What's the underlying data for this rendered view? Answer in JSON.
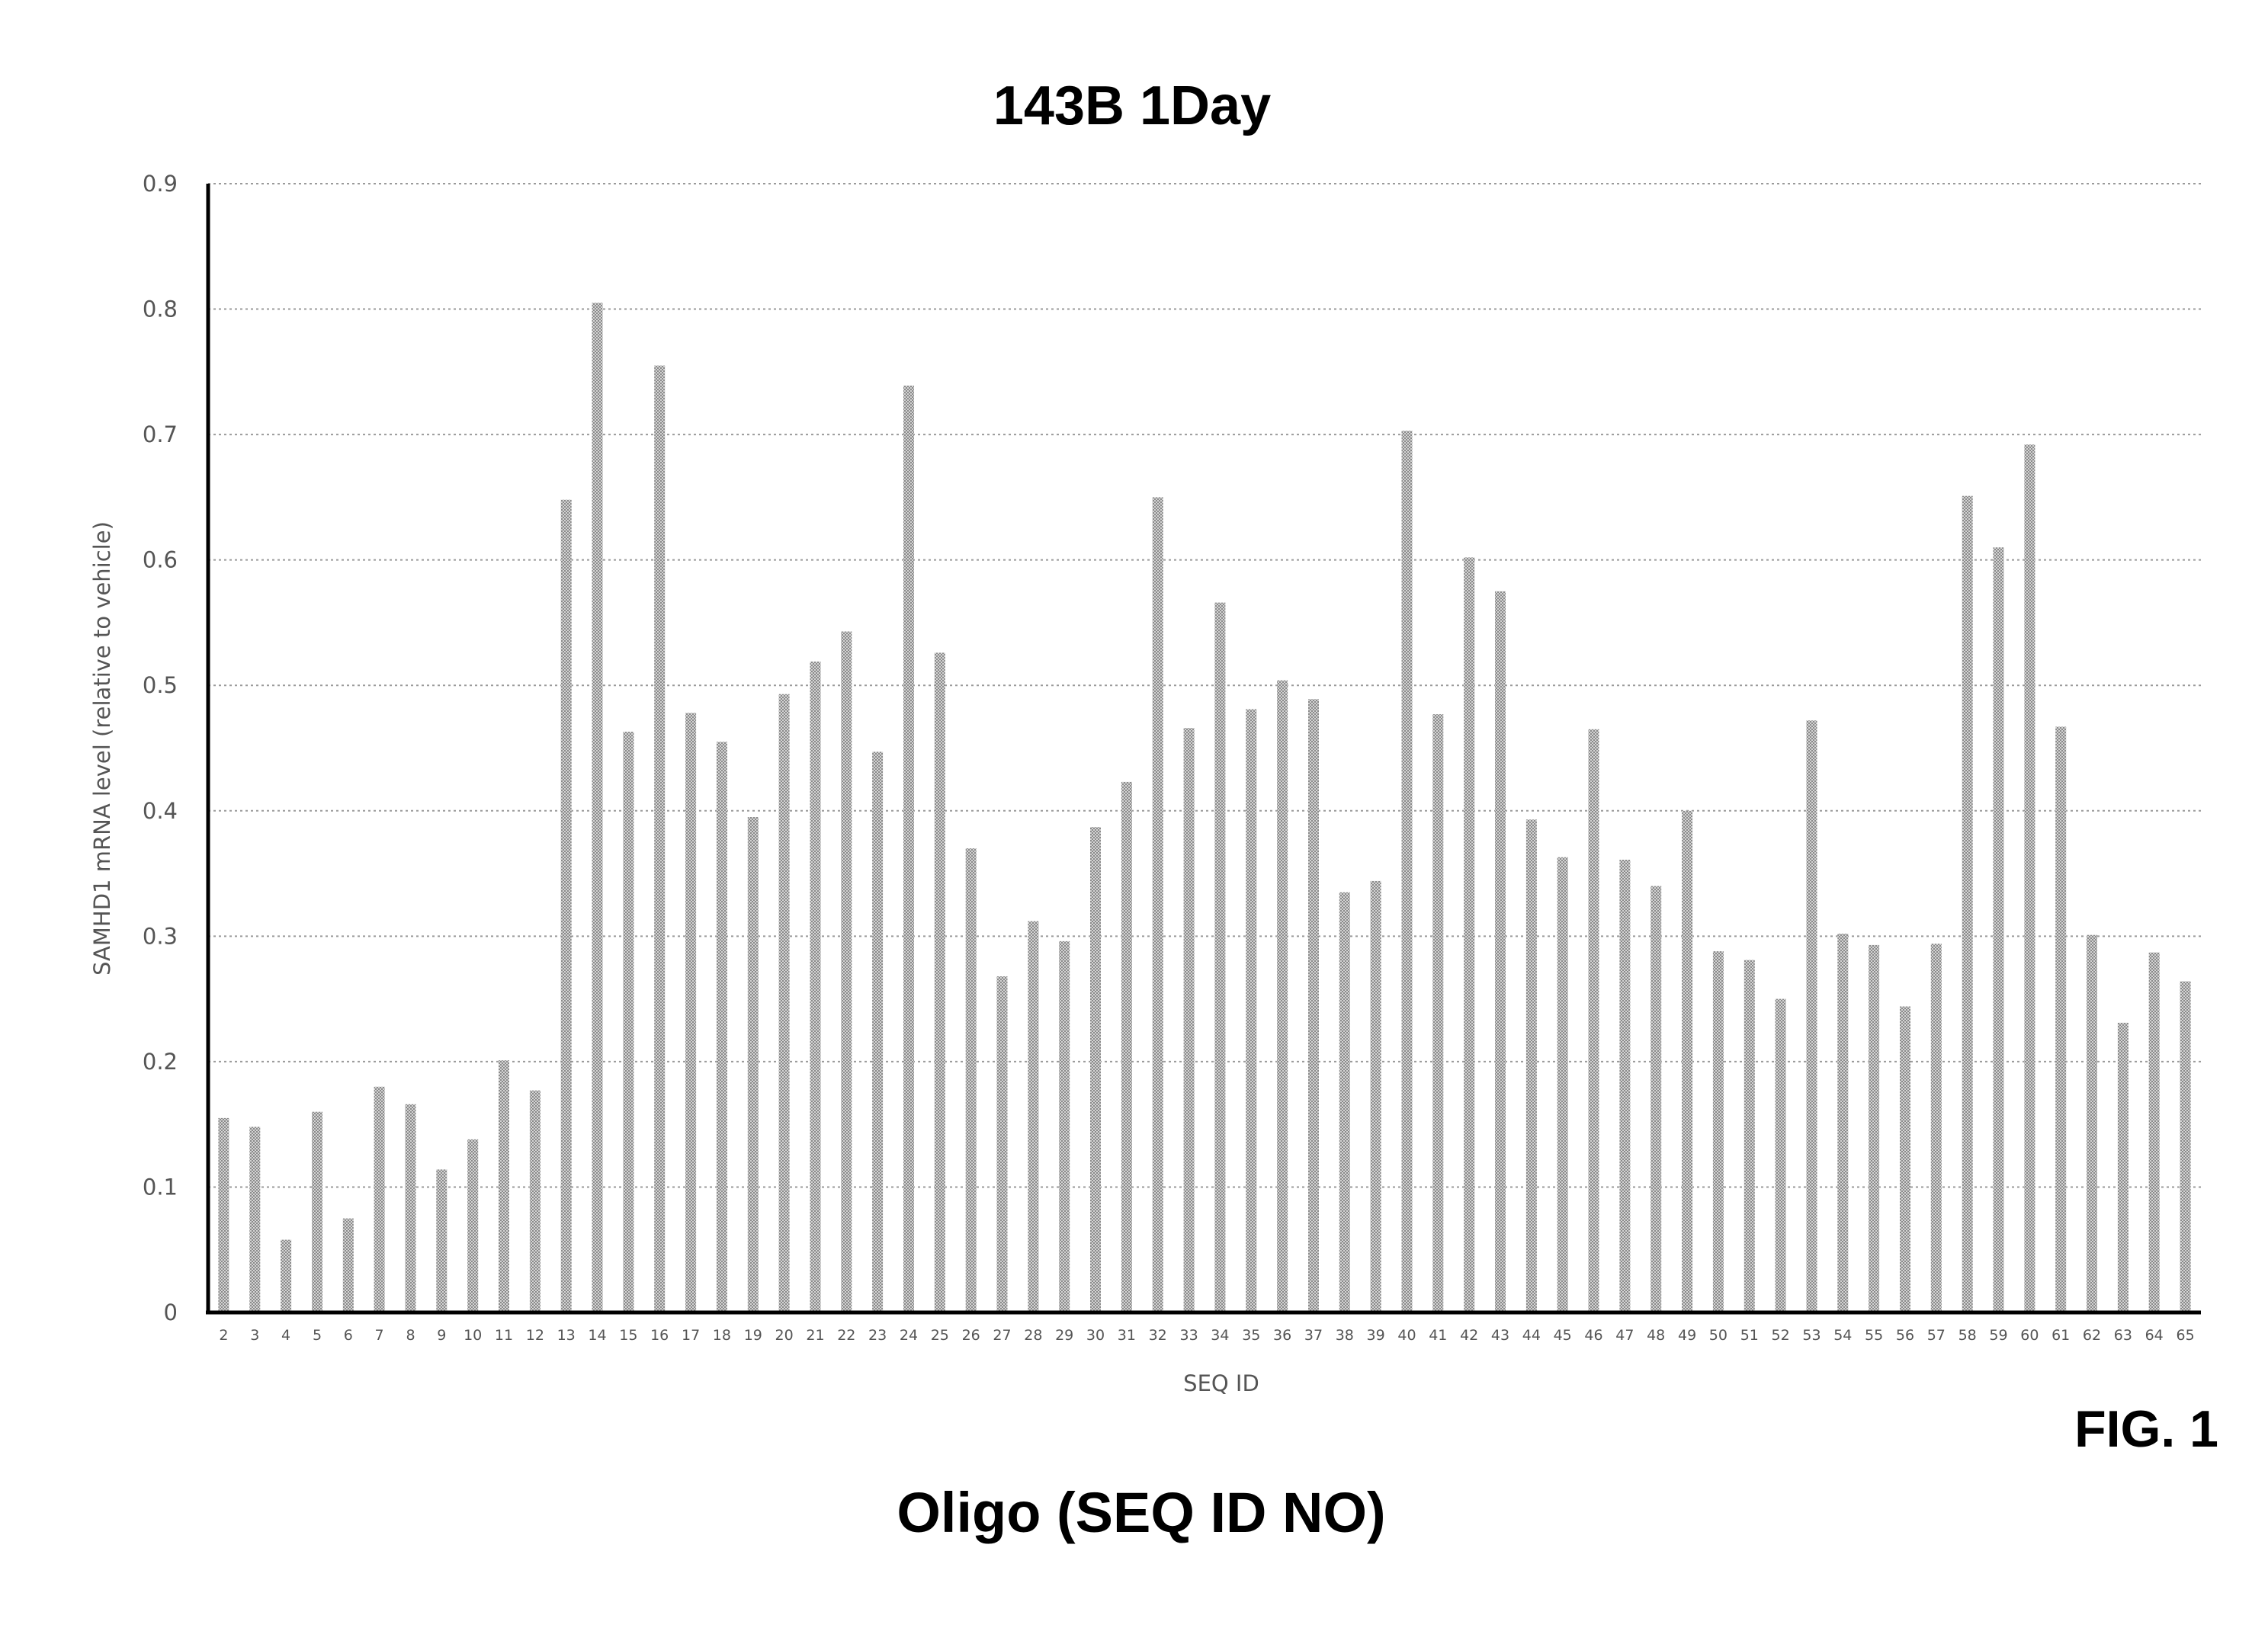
{
  "figure_label": "FIG. 1",
  "caption": "Oligo (SEQ ID NO)",
  "chart_data": {
    "type": "bar",
    "title": "143B 1Day",
    "xlabel": "SEQ ID",
    "ylabel": "SAMHD1 mRNA level (relative to vehicle)",
    "ylim": [
      0,
      0.9
    ],
    "yticks": [
      "0",
      "0.1",
      "0.2",
      "0.3",
      "0.4",
      "0.5",
      "0.6",
      "0.7",
      "0.8",
      "0.9"
    ],
    "grid": true,
    "bar_color": "#b8b8b8",
    "categories": [
      "2",
      "3",
      "4",
      "5",
      "6",
      "7",
      "8",
      "9",
      "10",
      "11",
      "12",
      "13",
      "14",
      "15",
      "16",
      "17",
      "18",
      "19",
      "20",
      "21",
      "22",
      "23",
      "24",
      "25",
      "26",
      "27",
      "28",
      "29",
      "30",
      "31",
      "32",
      "33",
      "34",
      "35",
      "36",
      "37",
      "38",
      "39",
      "40",
      "41",
      "42",
      "43",
      "44",
      "45",
      "46",
      "47",
      "48",
      "49",
      "50",
      "51",
      "52",
      "53",
      "54",
      "55",
      "56",
      "57",
      "58",
      "59",
      "60",
      "61",
      "62",
      "63",
      "64",
      "65"
    ],
    "values": [
      0.155,
      0.148,
      0.058,
      0.16,
      0.075,
      0.18,
      0.166,
      0.114,
      0.138,
      0.201,
      0.177,
      0.648,
      0.805,
      0.463,
      0.755,
      0.478,
      0.455,
      0.395,
      0.493,
      0.519,
      0.543,
      0.447,
      0.739,
      0.526,
      0.37,
      0.268,
      0.312,
      0.296,
      0.387,
      0.423,
      0.65,
      0.466,
      0.566,
      0.481,
      0.504,
      0.489,
      0.335,
      0.344,
      0.703,
      0.477,
      0.602,
      0.575,
      0.393,
      0.363,
      0.465,
      0.361,
      0.34,
      0.4,
      0.288,
      0.281,
      0.25,
      0.472,
      0.302,
      0.293,
      0.244,
      0.294,
      0.651,
      0.61,
      0.692,
      0.467,
      0.301,
      0.231,
      0.287,
      0.264
    ]
  }
}
